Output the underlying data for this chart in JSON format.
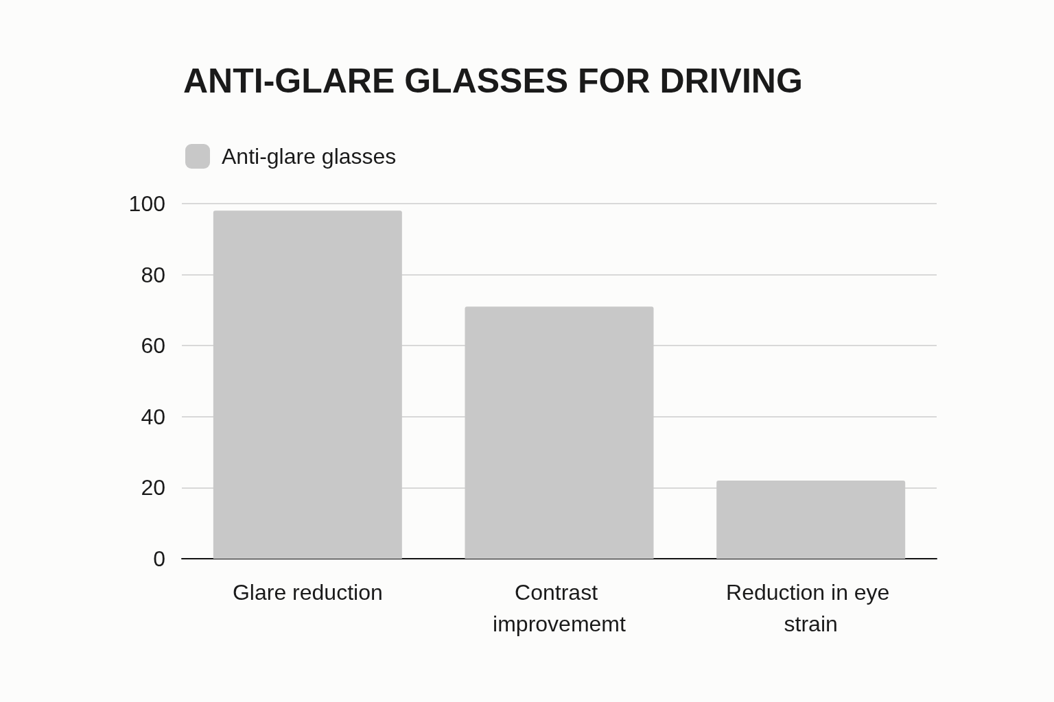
{
  "chart_data": {
    "type": "bar",
    "title": "ANTI-GLARE GLASSES FOR DRIVING",
    "categories": [
      "Glare reduction",
      "Contrast improvememt",
      "Reduction in eye strain"
    ],
    "series": [
      {
        "name": "Anti-glare glasses",
        "color": "#c8c8c8",
        "values": [
          98,
          71,
          22
        ]
      }
    ],
    "ylim": [
      0,
      100
    ],
    "yticks": [
      0,
      20,
      40,
      60,
      80,
      100
    ],
    "grid": "y",
    "legend": "top left"
  }
}
